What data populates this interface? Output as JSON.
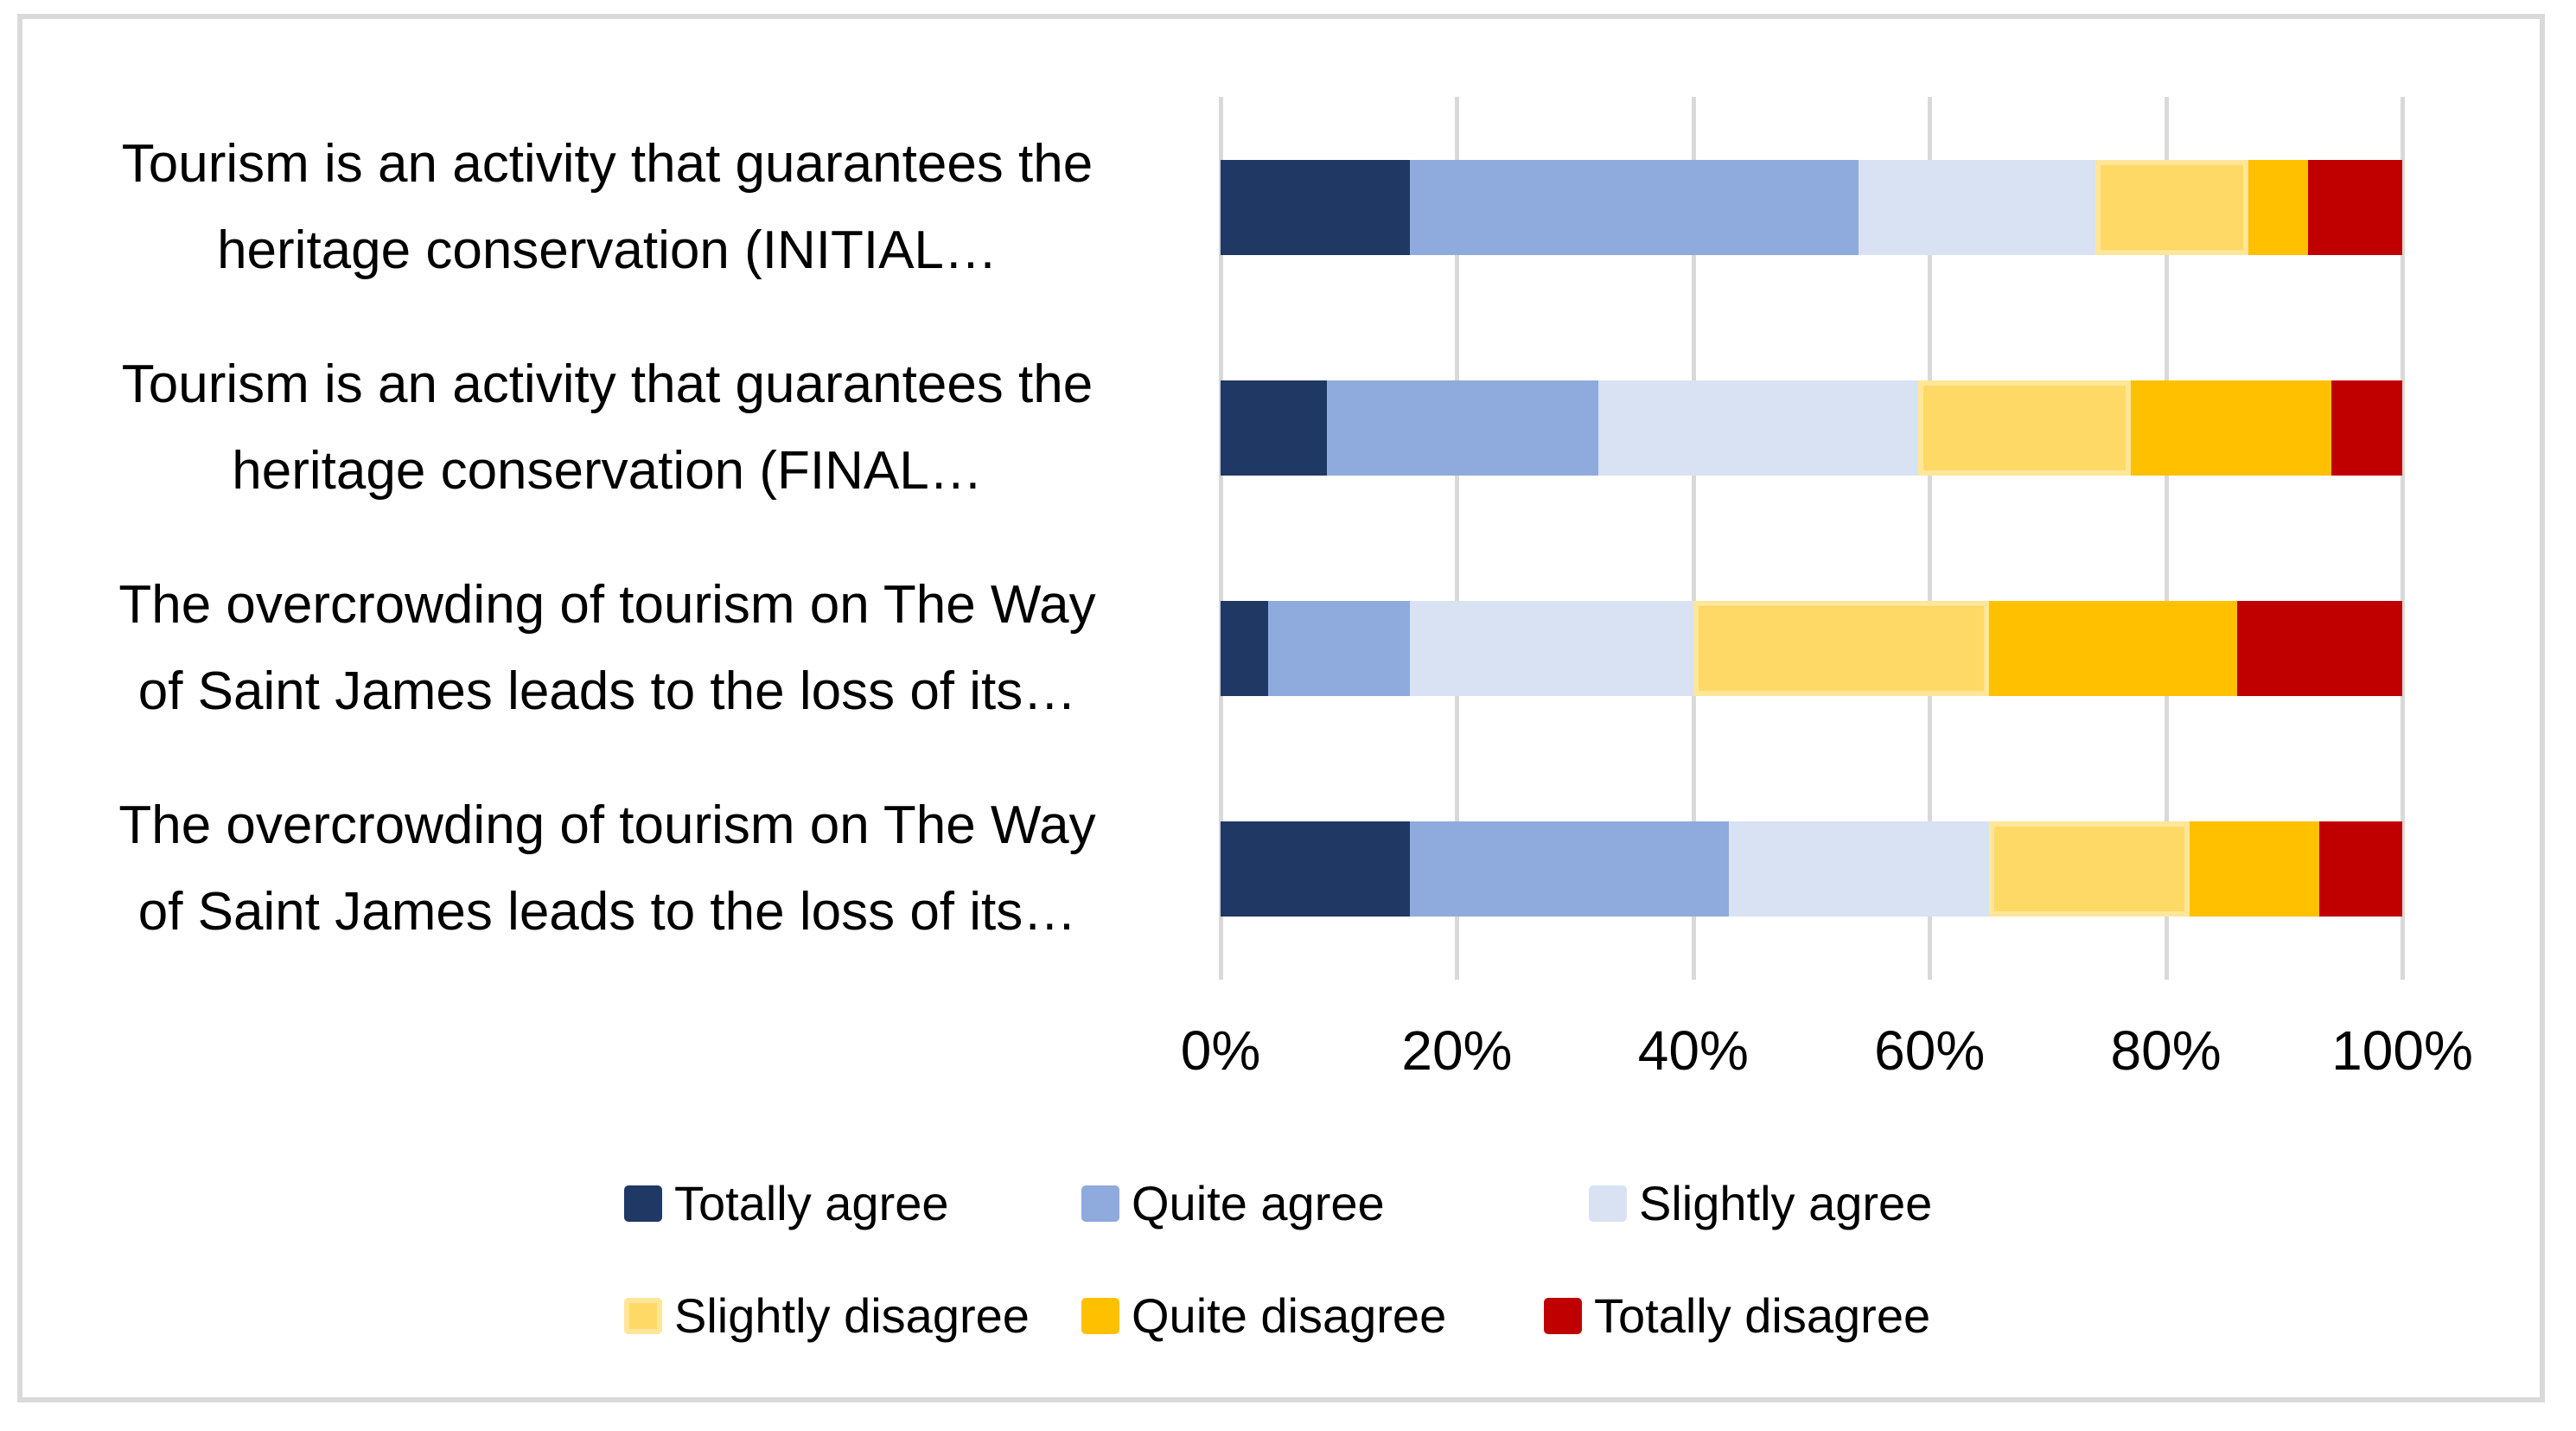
{
  "chart_data": {
    "type": "bar",
    "stacked": true,
    "orientation": "horizontal",
    "title": "",
    "categories": [
      "Tourism is an activity that guarantees the\nheritage conservation (INITIAL…",
      "Tourism is an activity that guarantees the\nheritage conservation (FINAL…",
      "The overcrowding of tourism on The Way\nof Saint James leads to the loss of its…",
      "The overcrowding of tourism on The Way\nof Saint James leads to the loss of its…"
    ],
    "series": [
      {
        "name": "Totally agree",
        "color": "#1F3864",
        "values": [
          16,
          9,
          4,
          16
        ]
      },
      {
        "name": "Quite agree",
        "color": "#8FAADC",
        "values": [
          38,
          23,
          12,
          27
        ]
      },
      {
        "name": "Slightly agree",
        "color": "#D9E2F3",
        "values": [
          20,
          27,
          24,
          22
        ]
      },
      {
        "name": "Slightly disagree",
        "color": "#FFD966",
        "border_color": "#FFE699",
        "values": [
          13,
          18,
          25,
          17
        ]
      },
      {
        "name": "Quite disagree",
        "color": "#FFC000",
        "values": [
          5,
          17,
          21,
          11
        ]
      },
      {
        "name": "Totally disagree",
        "color": "#C00000",
        "values": [
          8,
          6,
          14,
          7
        ]
      }
    ],
    "x_axis": {
      "min": 0,
      "max": 100,
      "tick_labels": [
        "0%",
        "20%",
        "40%",
        "60%",
        "80%",
        "100%"
      ]
    },
    "grid": "vertical",
    "legend_position": "bottom",
    "colors": {
      "gridline": "#D9D9D9",
      "frame_border": "#D9D9D9",
      "background": "#FFFFFF",
      "text": "#000000"
    }
  }
}
